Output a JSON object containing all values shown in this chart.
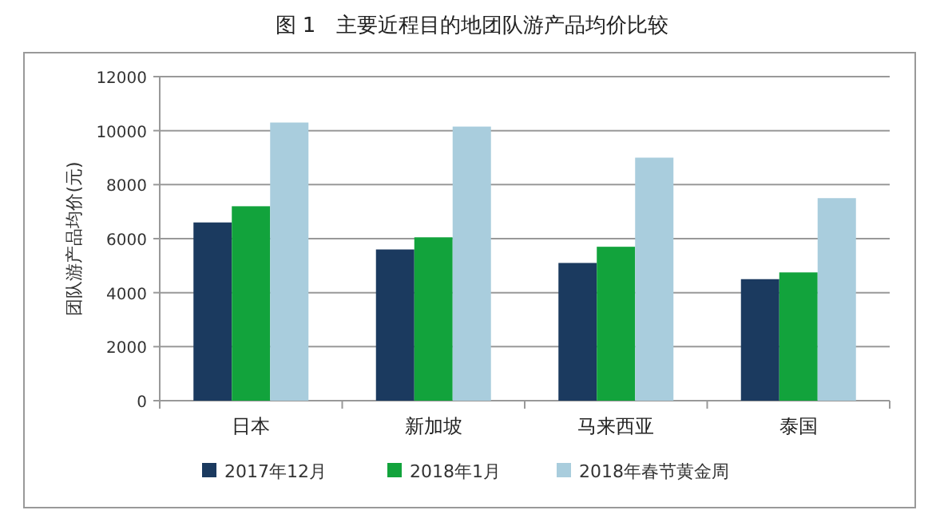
{
  "chart_data": {
    "type": "bar",
    "title": "图 1　主要近程目的地团队游产品均价比较",
    "ylabel": "团队游产品均价(元)",
    "categories": [
      "日本",
      "新加坡",
      "马来西亚",
      "泰国"
    ],
    "series": [
      {
        "name": "2017年12月",
        "color": "#1b3a5f",
        "values": [
          6600,
          5600,
          5100,
          4500
        ]
      },
      {
        "name": "2018年1月",
        "color": "#12a33c",
        "values": [
          7200,
          6050,
          5700,
          4750
        ]
      },
      {
        "name": "2018年春节黄金周",
        "color": "#a9cddd",
        "values": [
          10300,
          10150,
          9000,
          7500
        ]
      }
    ],
    "ylim": [
      0,
      12000
    ],
    "yticks": [
      0,
      2000,
      4000,
      6000,
      8000,
      10000,
      12000
    ],
    "grid": "y",
    "legend": "bottom"
  }
}
